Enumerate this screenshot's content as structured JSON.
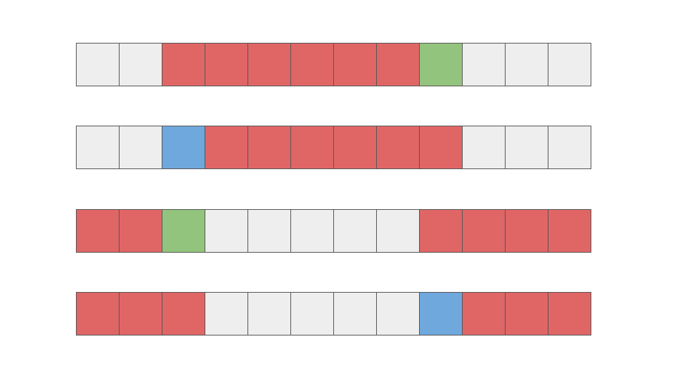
{
  "palette": {
    "empty": "#eeeeee",
    "red": "#e06666",
    "green": "#93c47d",
    "blue": "#6fa8dc",
    "border": "#555555"
  },
  "rows": [
    {
      "cells": [
        "empty",
        "empty",
        "red",
        "red",
        "red",
        "red",
        "red",
        "red",
        "green",
        "empty",
        "empty",
        "empty"
      ]
    },
    {
      "cells": [
        "empty",
        "empty",
        "blue",
        "red",
        "red",
        "red",
        "red",
        "red",
        "red",
        "empty",
        "empty",
        "empty"
      ]
    },
    {
      "cells": [
        "red",
        "red",
        "green",
        "empty",
        "empty",
        "empty",
        "empty",
        "empty",
        "red",
        "red",
        "red",
        "red"
      ]
    },
    {
      "cells": [
        "red",
        "red",
        "red",
        "empty",
        "empty",
        "empty",
        "empty",
        "empty",
        "blue",
        "red",
        "red",
        "red"
      ]
    }
  ]
}
